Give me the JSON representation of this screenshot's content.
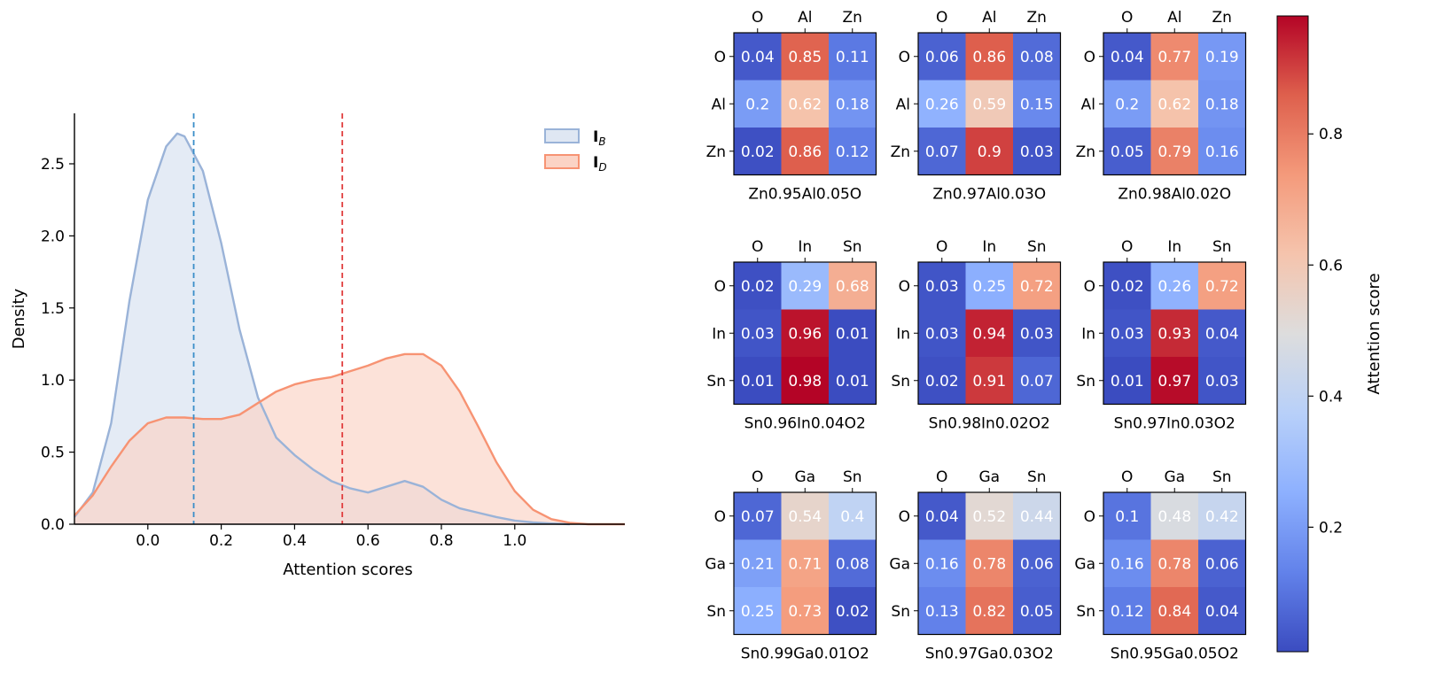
{
  "chart_data": [
    {
      "type": "area",
      "title": "",
      "xlabel": "Attention scores",
      "ylabel": "Density",
      "xlim": [
        -0.2,
        1.3
      ],
      "ylim": [
        0,
        2.85
      ],
      "xticks": [
        "0.0",
        "0.2",
        "0.4",
        "0.6",
        "0.8",
        "1.0"
      ],
      "yticks": [
        "0.0",
        "0.5",
        "1.0",
        "1.5",
        "2.0",
        "2.5"
      ],
      "legend_position": "top-right",
      "series": [
        {
          "name": "I_B",
          "legend_main": "I",
          "legend_sub": "B",
          "color": "#9ab3d8",
          "fill": "#dfe7f3",
          "mean": 0.125,
          "mean_color": "#3a8ec9",
          "points": [
            [
              -0.2,
              0.05
            ],
            [
              -0.15,
              0.22
            ],
            [
              -0.1,
              0.7
            ],
            [
              -0.05,
              1.55
            ],
            [
              0.0,
              2.25
            ],
            [
              0.05,
              2.62
            ],
            [
              0.08,
              2.71
            ],
            [
              0.1,
              2.69
            ],
            [
              0.15,
              2.45
            ],
            [
              0.2,
              1.95
            ],
            [
              0.25,
              1.35
            ],
            [
              0.3,
              0.88
            ],
            [
              0.35,
              0.6
            ],
            [
              0.4,
              0.48
            ],
            [
              0.45,
              0.38
            ],
            [
              0.5,
              0.3
            ],
            [
              0.55,
              0.25
            ],
            [
              0.6,
              0.22
            ],
            [
              0.65,
              0.26
            ],
            [
              0.7,
              0.3
            ],
            [
              0.75,
              0.26
            ],
            [
              0.8,
              0.17
            ],
            [
              0.85,
              0.11
            ],
            [
              0.9,
              0.08
            ],
            [
              0.95,
              0.05
            ],
            [
              1.0,
              0.025
            ],
            [
              1.05,
              0.012
            ],
            [
              1.1,
              0.005
            ],
            [
              1.15,
              0.0
            ]
          ]
        },
        {
          "name": "I_D",
          "legend_main": "I",
          "legend_sub": "D",
          "color": "#f79373",
          "fill": "#fbd3c5",
          "mean": 0.53,
          "mean_color": "#e03c3c",
          "points": [
            [
              -0.2,
              0.06
            ],
            [
              -0.15,
              0.2
            ],
            [
              -0.1,
              0.4
            ],
            [
              -0.05,
              0.58
            ],
            [
              0.0,
              0.7
            ],
            [
              0.05,
              0.74
            ],
            [
              0.1,
              0.74
            ],
            [
              0.15,
              0.73
            ],
            [
              0.2,
              0.73
            ],
            [
              0.25,
              0.76
            ],
            [
              0.3,
              0.84
            ],
            [
              0.35,
              0.92
            ],
            [
              0.4,
              0.97
            ],
            [
              0.45,
              1.0
            ],
            [
              0.5,
              1.02
            ],
            [
              0.55,
              1.06
            ],
            [
              0.6,
              1.1
            ],
            [
              0.65,
              1.15
            ],
            [
              0.7,
              1.18
            ],
            [
              0.75,
              1.18
            ],
            [
              0.8,
              1.1
            ],
            [
              0.85,
              0.92
            ],
            [
              0.9,
              0.68
            ],
            [
              0.95,
              0.43
            ],
            [
              1.0,
              0.23
            ],
            [
              1.05,
              0.1
            ],
            [
              1.1,
              0.035
            ],
            [
              1.15,
              0.01
            ],
            [
              1.2,
              0.0
            ],
            [
              1.3,
              0.0
            ]
          ]
        }
      ]
    },
    {
      "type": "heatmap",
      "colorbar_label": "Attention score",
      "colorbar_ticks": [
        "0.2",
        "0.4",
        "0.6",
        "0.8"
      ],
      "colorbar_range": [
        0.01,
        0.98
      ],
      "panels": [
        {
          "title": "Zn0.95Al0.05O",
          "cols": [
            "O",
            "Al",
            "Zn"
          ],
          "rows": [
            "O",
            "Al",
            "Zn"
          ],
          "values": [
            [
              0.04,
              0.85,
              0.11
            ],
            [
              0.2,
              0.62,
              0.18
            ],
            [
              0.02,
              0.86,
              0.12
            ]
          ]
        },
        {
          "title": "Zn0.97Al0.03O",
          "cols": [
            "O",
            "Al",
            "Zn"
          ],
          "rows": [
            "O",
            "Al",
            "Zn"
          ],
          "values": [
            [
              0.06,
              0.86,
              0.08
            ],
            [
              0.26,
              0.59,
              0.15
            ],
            [
              0.07,
              0.9,
              0.03
            ]
          ]
        },
        {
          "title": "Zn0.98Al0.02O",
          "cols": [
            "O",
            "Al",
            "Zn"
          ],
          "rows": [
            "O",
            "Al",
            "Zn"
          ],
          "values": [
            [
              0.04,
              0.77,
              0.19
            ],
            [
              0.2,
              0.62,
              0.18
            ],
            [
              0.05,
              0.79,
              0.16
            ]
          ]
        },
        {
          "title": "Sn0.96In0.04O2",
          "cols": [
            "O",
            "In",
            "Sn"
          ],
          "rows": [
            "O",
            "In",
            "Sn"
          ],
          "values": [
            [
              0.02,
              0.29,
              0.68
            ],
            [
              0.03,
              0.96,
              0.01
            ],
            [
              0.01,
              0.98,
              0.01
            ]
          ]
        },
        {
          "title": "Sn0.98In0.02O2",
          "cols": [
            "O",
            "In",
            "Sn"
          ],
          "rows": [
            "O",
            "In",
            "Sn"
          ],
          "values": [
            [
              0.03,
              0.25,
              0.72
            ],
            [
              0.03,
              0.94,
              0.03
            ],
            [
              0.02,
              0.91,
              0.07
            ]
          ]
        },
        {
          "title": "Sn0.97In0.03O2",
          "cols": [
            "O",
            "In",
            "Sn"
          ],
          "rows": [
            "O",
            "In",
            "Sn"
          ],
          "values": [
            [
              0.02,
              0.26,
              0.72
            ],
            [
              0.03,
              0.93,
              0.04
            ],
            [
              0.01,
              0.97,
              0.03
            ]
          ]
        },
        {
          "title": "Sn0.99Ga0.01O2",
          "cols": [
            "O",
            "Ga",
            "Sn"
          ],
          "rows": [
            "O",
            "Ga",
            "Sn"
          ],
          "values": [
            [
              0.07,
              0.54,
              0.4
            ],
            [
              0.21,
              0.71,
              0.08
            ],
            [
              0.25,
              0.73,
              0.02
            ]
          ]
        },
        {
          "title": "Sn0.97Ga0.03O2",
          "cols": [
            "O",
            "Ga",
            "Sn"
          ],
          "rows": [
            "O",
            "Ga",
            "Sn"
          ],
          "values": [
            [
              0.04,
              0.52,
              0.44
            ],
            [
              0.16,
              0.78,
              0.06
            ],
            [
              0.13,
              0.82,
              0.05
            ]
          ]
        },
        {
          "title": "Sn0.95Ga0.05O2",
          "cols": [
            "O",
            "Ga",
            "Sn"
          ],
          "rows": [
            "O",
            "Ga",
            "Sn"
          ],
          "values": [
            [
              0.1,
              0.48,
              0.42
            ],
            [
              0.16,
              0.78,
              0.06
            ],
            [
              0.12,
              0.84,
              0.04
            ]
          ]
        }
      ]
    }
  ]
}
